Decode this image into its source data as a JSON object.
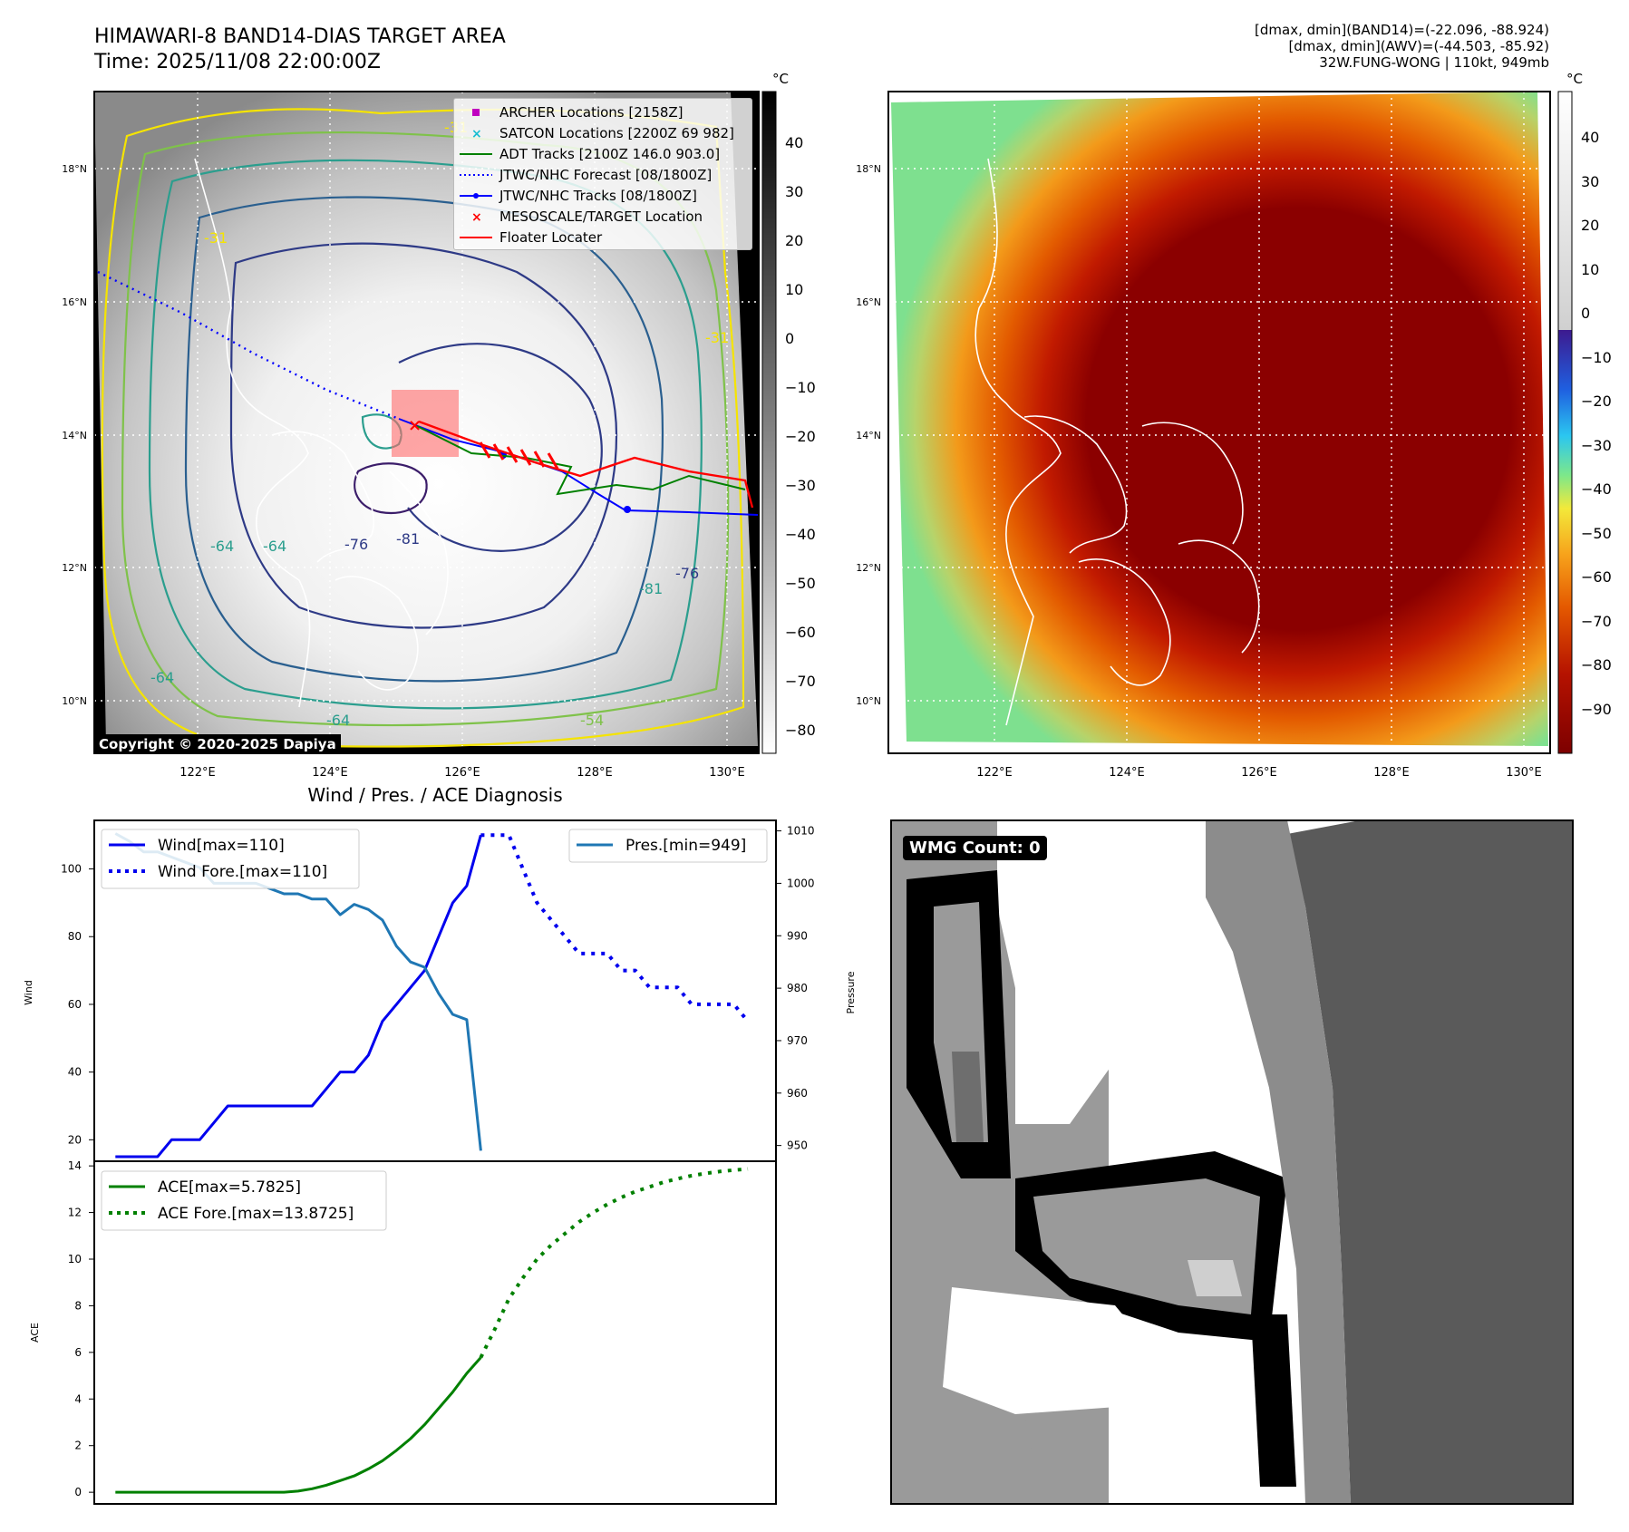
{
  "header": {
    "title_line1": "HIMAWARI-8 BAND14-DIAS TARGET AREA",
    "title_line2": "Time: 2025/11/08 22:00:00Z",
    "info_line1": "[dmax, dmin](BAND14)=(-22.096, -88.924)",
    "info_line2": "[dmax, dmin](AWV)=(-44.503, -85.92)",
    "info_line3": "32W.FUNG-WONG | 110kt, 949mb"
  },
  "copyright": "Copyright © 2020-2025 Dapiya",
  "map": {
    "lon_labels": [
      "122°E",
      "124°E",
      "126°E",
      "128°E",
      "130°E"
    ],
    "lat_labels": [
      "18°N",
      "16°N",
      "14°N",
      "12°N",
      "10°N"
    ],
    "contour_labels": [
      "-31",
      "-31",
      "-64",
      "-64",
      "-76",
      "-81",
      "-64",
      "-64",
      "-76",
      "-81",
      "-31",
      "-54"
    ]
  },
  "legend": {
    "items": [
      {
        "label": "ARCHER Locations [2158Z]",
        "color": "#c000c0",
        "marker": "square"
      },
      {
        "label": "SATCON Locations [2200Z 69 982]",
        "color": "#17becf",
        "marker": "x"
      },
      {
        "label": "ADT Tracks [2100Z 146.0 903.0]",
        "color": "#008000",
        "marker": "line"
      },
      {
        "label": "JTWC/NHC Forecast [08/1800Z]",
        "color": "#0000ff",
        "marker": "dotted"
      },
      {
        "label": "JTWC/NHC Tracks [08/1800Z]",
        "color": "#0000ff",
        "marker": "line-dot"
      },
      {
        "label": "MESOSCALE/TARGET Location",
        "color": "#ff0000",
        "marker": "x"
      },
      {
        "label": "Floater Locater",
        "color": "#ff0000",
        "marker": "line"
      }
    ]
  },
  "colorbar_gray": {
    "unit": "°C",
    "ticks": [
      "40",
      "30",
      "20",
      "10",
      "0",
      "−10",
      "−20",
      "−30",
      "−40",
      "−50",
      "−60",
      "−70",
      "−80"
    ]
  },
  "colorbar_color": {
    "unit": "°C",
    "ticks": [
      "40",
      "30",
      "20",
      "10",
      "0",
      "−10",
      "−20",
      "−30",
      "−40",
      "−50",
      "−60",
      "−70",
      "−80",
      "−90"
    ]
  },
  "colors": {
    "wind": "#0000ee",
    "pressure": "#1f77b4",
    "ace": "#008000"
  },
  "diagnosis": {
    "title": "Wind / Pres. / ACE Diagnosis",
    "wind_axis_label": "Wind",
    "pressure_axis_label": "Pressure",
    "ace_axis_label": "ACE",
    "wind_ticks": [
      "20",
      "40",
      "60",
      "80",
      "100"
    ],
    "pressure_ticks": [
      "950",
      "960",
      "970",
      "980",
      "990",
      "1000",
      "1010"
    ],
    "ace_ticks": [
      "0",
      "2",
      "4",
      "6",
      "8",
      "10",
      "12",
      "14"
    ],
    "legend_wind": "Wind[max=110]",
    "legend_wind_fore": "Wind Fore.[max=110]",
    "legend_pres": "Pres.[min=949]",
    "legend_ace": "ACE[max=5.7825]",
    "legend_ace_fore": "ACE Fore.[max=13.8725]"
  },
  "wmg": {
    "label": "WMG Count: 0"
  },
  "chart_data": [
    {
      "type": "line",
      "name": "Wind and Pressure",
      "x": [
        0,
        1,
        2,
        3,
        4,
        5,
        6,
        7,
        8,
        9,
        10,
        11,
        12,
        13,
        14,
        15,
        16,
        17,
        18,
        19,
        20,
        21,
        22,
        23,
        24,
        25,
        26
      ],
      "series": [
        {
          "name": "Wind[max=110]",
          "axis": "left",
          "x": [
            0,
            1,
            2,
            3,
            4,
            5,
            6,
            7,
            8,
            9,
            10,
            11,
            12,
            13,
            14,
            15,
            16,
            17,
            18,
            19,
            20,
            21,
            22,
            23,
            24,
            25,
            26
          ],
          "values": [
            15,
            15,
            15,
            15,
            20,
            20,
            20,
            25,
            30,
            30,
            30,
            30,
            30,
            30,
            30,
            35,
            40,
            40,
            45,
            55,
            60,
            65,
            70,
            80,
            90,
            95,
            110
          ]
        },
        {
          "name": "Wind Fore.[max=110]",
          "axis": "left",
          "x": [
            26,
            27,
            28,
            29,
            30,
            31,
            32,
            33,
            34,
            35,
            36,
            37,
            38,
            39,
            40,
            41,
            42,
            43,
            44,
            45
          ],
          "values": [
            110,
            110,
            110,
            100,
            90,
            85,
            80,
            75,
            75,
            75,
            70,
            70,
            65,
            65,
            65,
            60,
            60,
            60,
            60,
            55
          ]
        },
        {
          "name": "Pres.[min=949]",
          "axis": "right",
          "x": [
            0,
            1,
            2,
            3,
            4,
            5,
            6,
            7,
            8,
            9,
            10,
            11,
            12,
            13,
            14,
            15,
            16,
            17,
            18,
            19,
            20,
            21,
            22,
            23,
            24,
            25,
            26
          ],
          "values": [
            1009.5,
            1008,
            1006,
            1006,
            1005,
            1004,
            1003,
            1000,
            1000,
            1000,
            1000,
            999,
            998,
            998,
            997,
            997,
            994,
            996,
            995,
            993,
            988,
            985,
            984,
            979,
            975,
            974,
            949
          ]
        }
      ],
      "ylim_left": [
        15,
        113
      ],
      "ylim_right": [
        947,
        1012
      ],
      "ylabel": "Wind",
      "ylabel_right": "Pressure"
    },
    {
      "type": "line",
      "name": "ACE",
      "series": [
        {
          "name": "ACE[max=5.7825]",
          "x": [
            0,
            2,
            4,
            6,
            8,
            10,
            12,
            13,
            14,
            15,
            16,
            17,
            18,
            19,
            20,
            21,
            22,
            23,
            24,
            25,
            26
          ],
          "values": [
            0,
            0,
            0,
            0,
            0,
            0,
            0,
            0.05,
            0.15,
            0.3,
            0.5,
            0.7,
            1.0,
            1.35,
            1.8,
            2.3,
            2.9,
            3.6,
            4.3,
            5.1,
            5.78
          ]
        },
        {
          "name": "ACE Fore.[max=13.8725]",
          "x": [
            26,
            27,
            28,
            29,
            30,
            31,
            32,
            33,
            34,
            35,
            36,
            37,
            38,
            39,
            40,
            41,
            42,
            43,
            44,
            45
          ],
          "values": [
            5.78,
            7.0,
            8.3,
            9.2,
            10.0,
            10.6,
            11.1,
            11.6,
            12.0,
            12.35,
            12.65,
            12.9,
            13.1,
            13.3,
            13.45,
            13.58,
            13.68,
            13.76,
            13.82,
            13.87
          ]
        }
      ],
      "ylim": [
        -0.5,
        14.2
      ],
      "ylabel": "ACE"
    }
  ]
}
